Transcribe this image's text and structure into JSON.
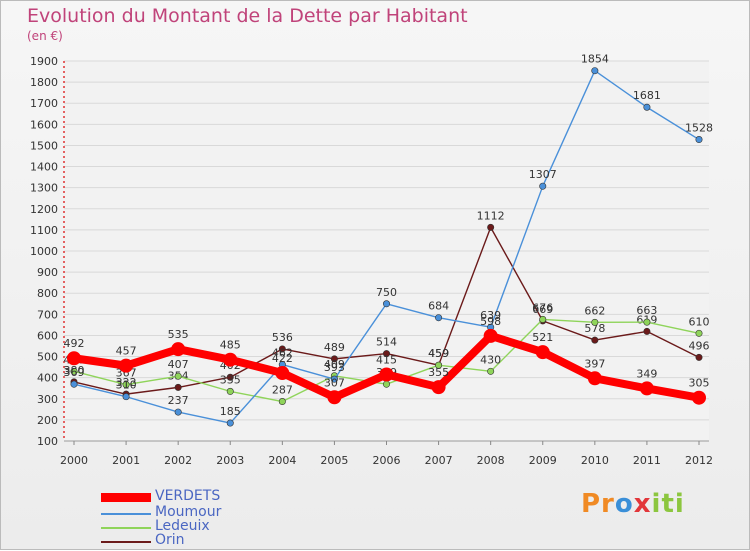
{
  "chart_data": {
    "type": "line",
    "title": "Evolution du Montant de la Dette par Habitant",
    "subtitle": "(en €)",
    "x": [
      "2000",
      "2001",
      "2002",
      "2003",
      "2004",
      "2005",
      "2006",
      "2007",
      "2008",
      "2009",
      "2010",
      "2011",
      "2012"
    ],
    "ylim": [
      100,
      1900
    ],
    "yticks": [
      100,
      200,
      300,
      400,
      500,
      600,
      700,
      800,
      900,
      1000,
      1100,
      1200,
      1300,
      1400,
      1500,
      1600,
      1700,
      1800,
      1900
    ],
    "grid": true,
    "legend_position": "bottom-left",
    "series": [
      {
        "name": "Orin",
        "color": "#6b1a1a",
        "values": [
          380,
          322,
          354,
          402,
          536,
          489,
          514,
          459,
          1112,
          669,
          578,
          619,
          496
        ]
      },
      {
        "name": "Ledeuix",
        "color": "#8fd45a",
        "values": [
          430,
          367,
          407,
          335,
          287,
          409,
          369,
          459,
          430,
          676,
          662,
          663,
          610
        ]
      },
      {
        "name": "Moumour",
        "color": "#4a90d9",
        "values": [
          369,
          310,
          237,
          185,
          462,
          393,
          750,
          684,
          639,
          1307,
          1854,
          1681,
          1528
        ]
      },
      {
        "name": "VERDETS",
        "color": "#ff0000",
        "values": [
          492,
          457,
          535,
          485,
          422,
          307,
          415,
          355,
          598,
          521,
          397,
          349,
          305
        ]
      }
    ]
  },
  "legend": [
    "VERDETS",
    "Moumour",
    "Ledeuix",
    "Orin"
  ],
  "logo": {
    "p1": "Pr",
    "p2": "o",
    "p3": "x",
    "p4": "iti"
  }
}
